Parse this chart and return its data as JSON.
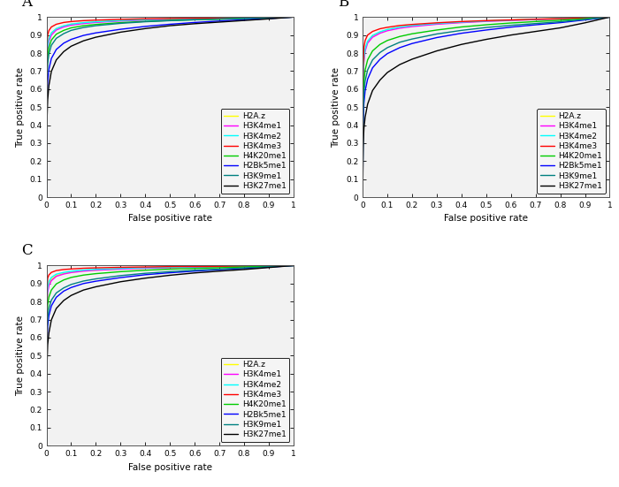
{
  "labels": [
    "A",
    "B",
    "C"
  ],
  "legend_labels": [
    "H2A.z",
    "H3K4me1",
    "H3K4me2",
    "H3K4me3",
    "H4K20me1",
    "H2Bk5me1",
    "H3K9me1",
    "H3K27me1"
  ],
  "colors": [
    "#ffff00",
    "#ff00ff",
    "#00ffff",
    "#ff0000",
    "#00cc00",
    "#0000ff",
    "#008080",
    "#000000"
  ],
  "panel_A": {
    "curves": [
      {
        "x": [
          0,
          0.002,
          0.005,
          0.01,
          0.02,
          0.04,
          0.07,
          0.1,
          0.15,
          0.2,
          0.3,
          0.4,
          0.5,
          0.6,
          0.7,
          0.8,
          0.9,
          1.0
        ],
        "y": [
          0,
          0.73,
          0.83,
          0.875,
          0.91,
          0.935,
          0.95,
          0.96,
          0.968,
          0.973,
          0.98,
          0.985,
          0.989,
          0.992,
          0.994,
          0.996,
          0.998,
          1.0
        ]
      },
      {
        "x": [
          0,
          0.002,
          0.005,
          0.01,
          0.02,
          0.04,
          0.07,
          0.1,
          0.15,
          0.2,
          0.3,
          0.4,
          0.5,
          0.6,
          0.7,
          0.8,
          0.9,
          1.0
        ],
        "y": [
          0,
          0.72,
          0.82,
          0.865,
          0.9,
          0.928,
          0.945,
          0.955,
          0.964,
          0.97,
          0.978,
          0.983,
          0.987,
          0.99,
          0.993,
          0.995,
          0.997,
          1.0
        ]
      },
      {
        "x": [
          0,
          0.002,
          0.005,
          0.01,
          0.02,
          0.04,
          0.07,
          0.1,
          0.15,
          0.2,
          0.3,
          0.4,
          0.5,
          0.6,
          0.7,
          0.8,
          0.9,
          1.0
        ],
        "y": [
          0,
          0.75,
          0.84,
          0.88,
          0.912,
          0.936,
          0.951,
          0.961,
          0.969,
          0.974,
          0.981,
          0.986,
          0.989,
          0.992,
          0.994,
          0.996,
          0.998,
          1.0
        ]
      },
      {
        "x": [
          0,
          0.002,
          0.005,
          0.01,
          0.02,
          0.04,
          0.07,
          0.1,
          0.15,
          0.2,
          0.3,
          0.4,
          0.5,
          0.6,
          0.7,
          0.8,
          0.9,
          1.0
        ],
        "y": [
          0,
          0.82,
          0.9,
          0.925,
          0.945,
          0.96,
          0.97,
          0.975,
          0.98,
          0.983,
          0.987,
          0.99,
          0.992,
          0.994,
          0.996,
          0.997,
          0.998,
          1.0
        ]
      },
      {
        "x": [
          0,
          0.002,
          0.005,
          0.01,
          0.02,
          0.04,
          0.07,
          0.1,
          0.15,
          0.2,
          0.3,
          0.4,
          0.5,
          0.6,
          0.7,
          0.8,
          0.9,
          1.0
        ],
        "y": [
          0,
          0.68,
          0.78,
          0.83,
          0.872,
          0.905,
          0.926,
          0.94,
          0.952,
          0.959,
          0.969,
          0.976,
          0.981,
          0.985,
          0.988,
          0.992,
          0.996,
          1.0
        ]
      },
      {
        "x": [
          0,
          0.002,
          0.005,
          0.01,
          0.02,
          0.04,
          0.07,
          0.1,
          0.15,
          0.2,
          0.3,
          0.4,
          0.5,
          0.6,
          0.7,
          0.8,
          0.9,
          1.0
        ],
        "y": [
          0,
          0.52,
          0.64,
          0.71,
          0.77,
          0.82,
          0.855,
          0.876,
          0.898,
          0.912,
          0.932,
          0.948,
          0.96,
          0.97,
          0.978,
          0.985,
          0.992,
          1.0
        ]
      },
      {
        "x": [
          0,
          0.002,
          0.005,
          0.01,
          0.02,
          0.04,
          0.07,
          0.1,
          0.15,
          0.2,
          0.3,
          0.4,
          0.5,
          0.6,
          0.7,
          0.8,
          0.9,
          1.0
        ],
        "y": [
          0,
          0.63,
          0.74,
          0.795,
          0.843,
          0.882,
          0.908,
          0.926,
          0.942,
          0.952,
          0.965,
          0.974,
          0.98,
          0.985,
          0.989,
          0.993,
          0.996,
          1.0
        ]
      },
      {
        "x": [
          0,
          0.002,
          0.005,
          0.01,
          0.02,
          0.04,
          0.07,
          0.1,
          0.15,
          0.2,
          0.3,
          0.4,
          0.5,
          0.6,
          0.7,
          0.8,
          0.9,
          1.0
        ],
        "y": [
          0,
          0.42,
          0.54,
          0.62,
          0.698,
          0.762,
          0.808,
          0.838,
          0.868,
          0.888,
          0.916,
          0.936,
          0.952,
          0.963,
          0.972,
          0.981,
          0.99,
          1.0
        ]
      }
    ]
  },
  "panel_B": {
    "curves": [
      {
        "x": [
          0,
          0.002,
          0.005,
          0.01,
          0.02,
          0.04,
          0.07,
          0.1,
          0.15,
          0.2,
          0.3,
          0.4,
          0.5,
          0.6,
          0.7,
          0.8,
          0.9,
          1.0
        ],
        "y": [
          0,
          0.65,
          0.76,
          0.82,
          0.862,
          0.895,
          0.916,
          0.93,
          0.943,
          0.951,
          0.963,
          0.971,
          0.978,
          0.983,
          0.987,
          0.991,
          0.996,
          1.0
        ]
      },
      {
        "x": [
          0,
          0.002,
          0.005,
          0.01,
          0.02,
          0.04,
          0.07,
          0.1,
          0.15,
          0.2,
          0.3,
          0.4,
          0.5,
          0.6,
          0.7,
          0.8,
          0.9,
          1.0
        ],
        "y": [
          0,
          0.64,
          0.75,
          0.81,
          0.855,
          0.888,
          0.91,
          0.924,
          0.938,
          0.947,
          0.96,
          0.969,
          0.976,
          0.981,
          0.986,
          0.99,
          0.995,
          1.0
        ]
      },
      {
        "x": [
          0,
          0.002,
          0.005,
          0.01,
          0.02,
          0.04,
          0.07,
          0.1,
          0.15,
          0.2,
          0.3,
          0.4,
          0.5,
          0.6,
          0.7,
          0.8,
          0.9,
          1.0
        ],
        "y": [
          0,
          0.66,
          0.77,
          0.825,
          0.866,
          0.898,
          0.918,
          0.931,
          0.944,
          0.953,
          0.964,
          0.972,
          0.978,
          0.983,
          0.987,
          0.991,
          0.995,
          1.0
        ]
      },
      {
        "x": [
          0,
          0.002,
          0.005,
          0.01,
          0.02,
          0.04,
          0.07,
          0.1,
          0.15,
          0.2,
          0.3,
          0.4,
          0.5,
          0.6,
          0.7,
          0.8,
          0.9,
          1.0
        ],
        "y": [
          0,
          0.72,
          0.83,
          0.87,
          0.9,
          0.92,
          0.935,
          0.943,
          0.953,
          0.959,
          0.968,
          0.975,
          0.98,
          0.984,
          0.988,
          0.991,
          0.995,
          1.0
        ]
      },
      {
        "x": [
          0,
          0.002,
          0.005,
          0.01,
          0.02,
          0.04,
          0.07,
          0.1,
          0.15,
          0.2,
          0.3,
          0.4,
          0.5,
          0.6,
          0.7,
          0.8,
          0.9,
          1.0
        ],
        "y": [
          0,
          0.52,
          0.64,
          0.706,
          0.762,
          0.812,
          0.848,
          0.87,
          0.892,
          0.907,
          0.928,
          0.945,
          0.957,
          0.967,
          0.975,
          0.982,
          0.991,
          1.0
        ]
      },
      {
        "x": [
          0,
          0.002,
          0.005,
          0.01,
          0.02,
          0.04,
          0.07,
          0.1,
          0.15,
          0.2,
          0.3,
          0.4,
          0.5,
          0.6,
          0.7,
          0.8,
          0.9,
          1.0
        ],
        "y": [
          0,
          0.4,
          0.52,
          0.59,
          0.655,
          0.718,
          0.765,
          0.797,
          0.83,
          0.853,
          0.886,
          0.91,
          0.928,
          0.944,
          0.957,
          0.969,
          0.984,
          1.0
        ]
      },
      {
        "x": [
          0,
          0.002,
          0.005,
          0.01,
          0.02,
          0.04,
          0.07,
          0.1,
          0.15,
          0.2,
          0.3,
          0.4,
          0.5,
          0.6,
          0.7,
          0.8,
          0.9,
          1.0
        ],
        "y": [
          0,
          0.46,
          0.58,
          0.645,
          0.706,
          0.762,
          0.803,
          0.83,
          0.86,
          0.878,
          0.906,
          0.926,
          0.942,
          0.954,
          0.964,
          0.974,
          0.987,
          1.0
        ]
      },
      {
        "x": [
          0,
          0.002,
          0.005,
          0.01,
          0.02,
          0.04,
          0.07,
          0.1,
          0.15,
          0.2,
          0.3,
          0.4,
          0.5,
          0.6,
          0.7,
          0.8,
          0.9,
          1.0
        ],
        "y": [
          0,
          0.28,
          0.38,
          0.444,
          0.516,
          0.592,
          0.65,
          0.692,
          0.736,
          0.766,
          0.812,
          0.848,
          0.876,
          0.9,
          0.92,
          0.94,
          0.968,
          1.0
        ]
      }
    ]
  },
  "panel_C": {
    "curves": [
      {
        "x": [
          0,
          0.002,
          0.005,
          0.01,
          0.02,
          0.04,
          0.07,
          0.1,
          0.15,
          0.2,
          0.3,
          0.4,
          0.5,
          0.6,
          0.7,
          0.8,
          0.9,
          1.0
        ],
        "y": [
          0,
          0.77,
          0.86,
          0.895,
          0.922,
          0.944,
          0.956,
          0.963,
          0.971,
          0.975,
          0.981,
          0.986,
          0.989,
          0.992,
          0.994,
          0.996,
          0.998,
          1.0
        ]
      },
      {
        "x": [
          0,
          0.002,
          0.005,
          0.01,
          0.02,
          0.04,
          0.07,
          0.1,
          0.15,
          0.2,
          0.3,
          0.4,
          0.5,
          0.6,
          0.7,
          0.8,
          0.9,
          1.0
        ],
        "y": [
          0,
          0.76,
          0.85,
          0.888,
          0.916,
          0.94,
          0.953,
          0.961,
          0.969,
          0.974,
          0.98,
          0.985,
          0.988,
          0.991,
          0.993,
          0.995,
          0.998,
          1.0
        ]
      },
      {
        "x": [
          0,
          0.002,
          0.005,
          0.01,
          0.02,
          0.04,
          0.07,
          0.1,
          0.15,
          0.2,
          0.3,
          0.4,
          0.5,
          0.6,
          0.7,
          0.8,
          0.9,
          1.0
        ],
        "y": [
          0,
          0.8,
          0.88,
          0.91,
          0.934,
          0.952,
          0.962,
          0.968,
          0.975,
          0.979,
          0.984,
          0.988,
          0.99,
          0.993,
          0.995,
          0.996,
          0.998,
          1.0
        ]
      },
      {
        "x": [
          0,
          0.002,
          0.005,
          0.01,
          0.02,
          0.04,
          0.07,
          0.1,
          0.15,
          0.2,
          0.3,
          0.4,
          0.5,
          0.6,
          0.7,
          0.8,
          0.9,
          1.0
        ],
        "y": [
          0,
          0.86,
          0.93,
          0.948,
          0.962,
          0.972,
          0.978,
          0.981,
          0.985,
          0.987,
          0.99,
          0.992,
          0.994,
          0.995,
          0.996,
          0.997,
          0.999,
          1.0
        ]
      },
      {
        "x": [
          0,
          0.002,
          0.005,
          0.01,
          0.02,
          0.04,
          0.07,
          0.1,
          0.15,
          0.2,
          0.3,
          0.4,
          0.5,
          0.6,
          0.7,
          0.8,
          0.9,
          1.0
        ],
        "y": [
          0,
          0.68,
          0.78,
          0.825,
          0.864,
          0.898,
          0.92,
          0.934,
          0.947,
          0.955,
          0.966,
          0.974,
          0.98,
          0.984,
          0.988,
          0.992,
          0.996,
          1.0
        ]
      },
      {
        "x": [
          0,
          0.002,
          0.005,
          0.01,
          0.02,
          0.04,
          0.07,
          0.1,
          0.15,
          0.2,
          0.3,
          0.4,
          0.5,
          0.6,
          0.7,
          0.8,
          0.9,
          1.0
        ],
        "y": [
          0,
          0.54,
          0.66,
          0.722,
          0.776,
          0.824,
          0.858,
          0.878,
          0.9,
          0.913,
          0.933,
          0.949,
          0.96,
          0.969,
          0.977,
          0.984,
          0.991,
          1.0
        ]
      },
      {
        "x": [
          0,
          0.002,
          0.005,
          0.01,
          0.02,
          0.04,
          0.07,
          0.1,
          0.15,
          0.2,
          0.3,
          0.4,
          0.5,
          0.6,
          0.7,
          0.8,
          0.9,
          1.0
        ],
        "y": [
          0,
          0.6,
          0.71,
          0.762,
          0.808,
          0.848,
          0.876,
          0.895,
          0.914,
          0.926,
          0.944,
          0.957,
          0.966,
          0.974,
          0.98,
          0.987,
          0.993,
          1.0
        ]
      },
      {
        "x": [
          0,
          0.002,
          0.005,
          0.01,
          0.02,
          0.04,
          0.07,
          0.1,
          0.15,
          0.2,
          0.3,
          0.4,
          0.5,
          0.6,
          0.7,
          0.8,
          0.9,
          1.0
        ],
        "y": [
          0,
          0.44,
          0.56,
          0.626,
          0.698,
          0.762,
          0.806,
          0.834,
          0.864,
          0.882,
          0.91,
          0.93,
          0.946,
          0.959,
          0.969,
          0.978,
          0.989,
          1.0
        ]
      }
    ]
  },
  "xlabel": "False positive rate",
  "ylabel": "True positive rate",
  "xlim": [
    0,
    1
  ],
  "ylim": [
    0,
    1
  ],
  "xticks": [
    0,
    0.1,
    0.2,
    0.3,
    0.4,
    0.5,
    0.6,
    0.7,
    0.8,
    0.9,
    1
  ],
  "yticks": [
    0,
    0.1,
    0.2,
    0.3,
    0.4,
    0.5,
    0.6,
    0.7,
    0.8,
    0.9,
    1
  ],
  "xticklabels": [
    "0",
    "0.1",
    "0.2",
    "0.3",
    "0.4",
    "0.5",
    "0.6",
    "0.7",
    "0.8",
    "0.9",
    "1"
  ],
  "yticklabels": [
    "0",
    "0.1",
    "0.2",
    "0.3",
    "0.4",
    "0.5",
    "0.6",
    "0.7",
    "0.8",
    "0.9",
    "1"
  ],
  "linewidth": 1.0,
  "legend_fontsize": 6.5,
  "tick_fontsize": 6.5,
  "axis_label_fontsize": 7.5,
  "panel_label_fontsize": 12,
  "bg_color": "#f0f0f0"
}
